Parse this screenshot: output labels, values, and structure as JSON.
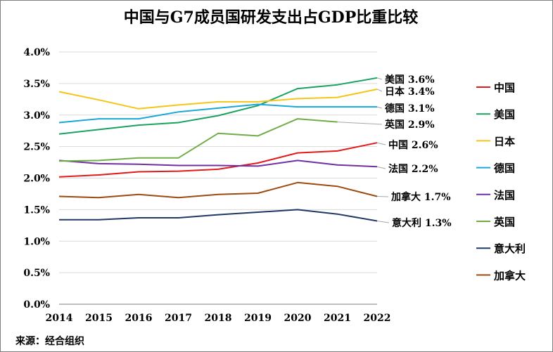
{
  "chart_data": {
    "type": "line",
    "title": "中国与G7成员国研发支出占GDP比重比较",
    "x": [
      "2014",
      "2015",
      "2016",
      "2017",
      "2018",
      "2019",
      "2020",
      "2021",
      "2022"
    ],
    "ylim": [
      0,
      4
    ],
    "yticks": [
      "0.0%",
      "0.5%",
      "1.0%",
      "1.5%",
      "2.0%",
      "2.5%",
      "3.0%",
      "3.5%",
      "4.0%"
    ],
    "grid": "horizontal",
    "legend_position": "right",
    "series": [
      {
        "name": "中国",
        "color": "#e31a1c",
        "values": [
          2.02,
          2.05,
          2.1,
          2.11,
          2.14,
          2.24,
          2.4,
          2.43,
          2.56
        ],
        "end_label": "中国 2.6%"
      },
      {
        "name": "美国",
        "color": "#1aa260",
        "values": [
          2.7,
          2.77,
          2.84,
          2.88,
          2.99,
          3.15,
          3.42,
          3.48,
          3.59
        ],
        "end_label": "美国 3.6%"
      },
      {
        "name": "日本",
        "color": "#f5c518",
        "values": [
          3.37,
          3.24,
          3.1,
          3.16,
          3.21,
          3.21,
          3.26,
          3.28,
          3.41
        ],
        "end_label": "日本 3.4%"
      },
      {
        "name": "德国",
        "color": "#1aa8d8",
        "values": [
          2.88,
          2.94,
          2.94,
          3.05,
          3.11,
          3.17,
          3.13,
          3.13,
          3.13
        ],
        "end_label": "德国 3.1%"
      },
      {
        "name": "法国",
        "color": "#7030a0",
        "values": [
          2.28,
          2.23,
          2.22,
          2.2,
          2.2,
          2.19,
          2.28,
          2.21,
          2.18
        ],
        "end_label": "法国 2.2%"
      },
      {
        "name": "英国",
        "color": "#70ad47",
        "values": [
          2.27,
          2.28,
          2.32,
          2.32,
          2.71,
          2.67,
          2.94,
          2.89,
          null
        ],
        "end_label": "英国 2.9%"
      },
      {
        "name": "意大利",
        "color": "#203864",
        "values": [
          1.34,
          1.34,
          1.37,
          1.37,
          1.42,
          1.46,
          1.5,
          1.43,
          1.32
        ],
        "end_label": "意大利 1.3%"
      },
      {
        "name": "加拿大",
        "color": "#9c4a10",
        "values": [
          1.71,
          1.69,
          1.74,
          1.69,
          1.74,
          1.76,
          1.93,
          1.87,
          1.71
        ],
        "end_label": "加拿大 1.7%"
      }
    ],
    "legend_order": [
      "中国",
      "美国",
      "日本",
      "德国",
      "法国",
      "英国",
      "意大利",
      "加拿大"
    ]
  },
  "source": "来源：经合组织"
}
